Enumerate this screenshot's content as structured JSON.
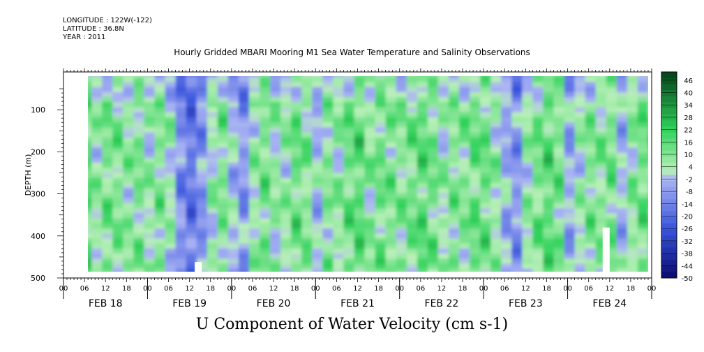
{
  "header": {
    "longitude": "LONGITUDE : 122W(-122)",
    "latitude": "LATITUDE : 36.8N",
    "year": "YEAR : 2011"
  },
  "chart_data": {
    "type": "heatmap",
    "title": "Hourly Gridded MBARI Mooring M1 Sea Water Temperature and Salinity Observations",
    "caption": "U Component of Water Velocity (cm s-1)",
    "ylabel": "DEPTH (m)",
    "y_range": [
      10,
      500
    ],
    "y_ticks": [
      "100",
      "200",
      "300",
      "400",
      "500"
    ],
    "x_range_hours": [
      0,
      168
    ],
    "x_hour_ticks": [
      "00",
      "06",
      "12",
      "18",
      "00",
      "06",
      "12",
      "18",
      "00",
      "06",
      "12",
      "18",
      "00",
      "06",
      "12",
      "18",
      "00",
      "06",
      "12",
      "18",
      "00",
      "06",
      "12",
      "18",
      "00",
      "06",
      "12",
      "18",
      "00"
    ],
    "x_date_labels": [
      "FEB 18",
      "FEB 19",
      "FEB 20",
      "FEB 21",
      "FEB 22",
      "FEB 23",
      "FEB 24"
    ],
    "colorbar_labels": [
      "46",
      "40",
      "34",
      "28",
      "22",
      "16",
      "10",
      "4",
      "-2",
      "-8",
      "-14",
      "-20",
      "-26",
      "-32",
      "-38",
      "-44",
      "-50"
    ],
    "colorbar_range": [
      -50,
      50
    ],
    "colors": {
      "neg_strong": "#0a0a6e",
      "neg_mid": "#3a55dd",
      "neg_weak": "#aab4f4",
      "pos_weak": "#b8f0b8",
      "pos_mid": "#2fd25a",
      "pos_strong": "#06401a"
    },
    "data_start_hour": 7,
    "data_end_hour": 167,
    "data_depth_range": [
      20,
      485
    ],
    "column_profiles_hour_velocity": [
      [
        7,
        -6
      ],
      [
        10,
        8
      ],
      [
        14,
        12
      ],
      [
        18,
        6
      ],
      [
        21,
        10
      ],
      [
        24,
        4
      ],
      [
        28,
        10
      ],
      [
        31,
        2
      ],
      [
        34,
        -14
      ],
      [
        37,
        -18
      ],
      [
        40,
        -8
      ],
      [
        43,
        6
      ],
      [
        46,
        10
      ],
      [
        49,
        -4
      ],
      [
        52,
        -10
      ],
      [
        55,
        8
      ],
      [
        58,
        12
      ],
      [
        61,
        4
      ],
      [
        64,
        6
      ],
      [
        67,
        14
      ],
      [
        70,
        8
      ],
      [
        73,
        -4
      ],
      [
        76,
        10
      ],
      [
        79,
        6
      ],
      [
        82,
        14
      ],
      [
        85,
        16
      ],
      [
        88,
        6
      ],
      [
        91,
        12
      ],
      [
        94,
        10
      ],
      [
        97,
        8
      ],
      [
        100,
        12
      ],
      [
        103,
        16
      ],
      [
        106,
        10
      ],
      [
        109,
        4
      ],
      [
        112,
        10
      ],
      [
        115,
        8
      ],
      [
        118,
        14
      ],
      [
        121,
        12
      ],
      [
        124,
        4
      ],
      [
        127,
        -6
      ],
      [
        130,
        -10
      ],
      [
        133,
        8
      ],
      [
        136,
        12
      ],
      [
        139,
        16
      ],
      [
        142,
        10
      ],
      [
        145,
        -8
      ],
      [
        148,
        6
      ],
      [
        151,
        10
      ],
      [
        154,
        8
      ],
      [
        157,
        12
      ],
      [
        160,
        -6
      ],
      [
        163,
        10
      ],
      [
        167,
        14
      ]
    ],
    "missing_blocks": [
      {
        "hour_start": 37.5,
        "hour_end": 39.5,
        "depth_start": 462,
        "depth_end": 485
      },
      {
        "hour_start": 154,
        "hour_end": 156,
        "depth_start": 380,
        "depth_end": 485
      }
    ]
  }
}
